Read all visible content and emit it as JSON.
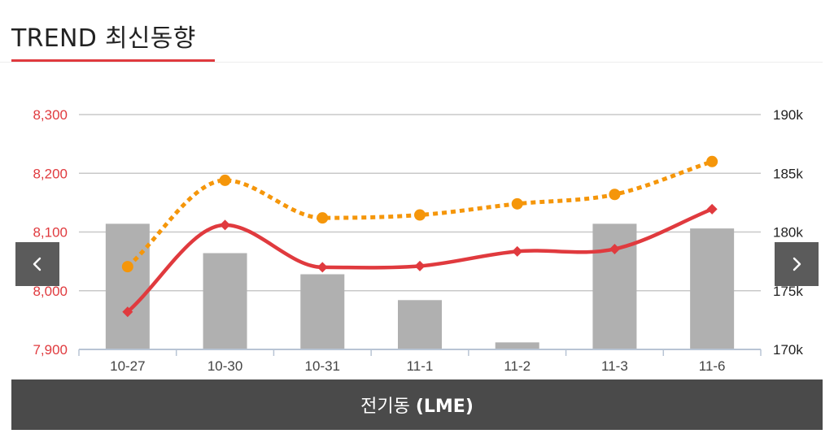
{
  "header": {
    "title": "TREND 최신동향"
  },
  "footer": {
    "name": "전기동",
    "market": "(LME)"
  },
  "nav": {
    "prev_icon": "chevron-left-icon",
    "next_icon": "chevron-right-icon"
  },
  "colors": {
    "accent": "#e03a3e",
    "series_red": "#e03a3e",
    "series_orange": "#f5960a",
    "bars": "#b0b0b0",
    "grid": "#c8c8c8",
    "nav_bg": "#5b5b5b",
    "footer_bg": "#4a4a4a"
  },
  "chart_data": {
    "type": "bar",
    "categories": [
      "10-27",
      "10-30",
      "10-31",
      "11-1",
      "11-2",
      "11-3",
      "11-6"
    ],
    "left_axis": {
      "ylim": [
        7900,
        8300
      ],
      "ticks": [
        "7,900",
        "8,000",
        "8,100",
        "8,200",
        "8,300"
      ]
    },
    "right_axis": {
      "ylim": [
        170000,
        190000
      ],
      "ticks": [
        "170k",
        "175k",
        "180k",
        "185k",
        "190k"
      ]
    },
    "grid": true,
    "series": [
      {
        "type": "bar",
        "axis": "right",
        "values": [
          180700,
          178200,
          176400,
          174200,
          170600,
          180700,
          180300
        ]
      },
      {
        "type": "line",
        "axis": "left",
        "style": "solid",
        "marker": "diamond",
        "values": [
          7964,
          8112,
          8040,
          8042,
          8067,
          8071,
          8139
        ]
      },
      {
        "type": "line",
        "axis": "left",
        "style": "dotted",
        "marker": "circle",
        "values": [
          8041,
          8188,
          8124,
          8129,
          8148,
          8164,
          8220
        ]
      }
    ]
  }
}
